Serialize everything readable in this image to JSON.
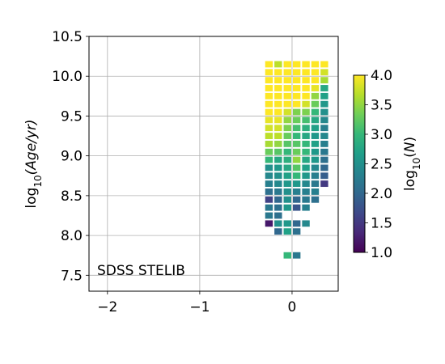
{
  "chart_data": {
    "type": "heatmap",
    "annotation": "SDSS STELIB",
    "xlim": [
      -2.2,
      0.5
    ],
    "ylim": [
      7.3,
      10.5
    ],
    "xticks": [
      {
        "value": -2,
        "label": "−2"
      },
      {
        "value": -1,
        "label": "−1"
      },
      {
        "value": 0,
        "label": "0"
      }
    ],
    "yticks": [
      {
        "value": 7.5,
        "label": "7.5"
      },
      {
        "value": 8.0,
        "label": "8.0"
      },
      {
        "value": 8.5,
        "label": "8.5"
      },
      {
        "value": 9.0,
        "label": "9.0"
      },
      {
        "value": 9.5,
        "label": "9.5"
      },
      {
        "value": 10.0,
        "label": "10.0"
      },
      {
        "value": 10.5,
        "label": "10.5"
      }
    ],
    "grid": true,
    "ylabel": "log10(Age/yr)",
    "colorbar": {
      "label": "log10(N)",
      "range": [
        1.0,
        4.0
      ],
      "colormap": "viridis",
      "ticks": [
        {
          "value": 1.0,
          "label": "1.0"
        },
        {
          "value": 1.5,
          "label": "1.5"
        },
        {
          "value": 2.0,
          "label": "2.0"
        },
        {
          "value": 2.5,
          "label": "2.5"
        },
        {
          "value": 3.0,
          "label": "3.0"
        },
        {
          "value": 3.5,
          "label": "3.5"
        },
        {
          "value": 4.0,
          "label": "4.0"
        }
      ]
    },
    "cell_size": {
      "dx": 0.1,
      "dy": 0.1
    },
    "x_centers": [
      -0.25,
      -0.15,
      -0.05,
      0.05,
      0.15,
      0.25,
      0.35
    ],
    "columns": [
      {
        "x": -0.25,
        "cells": [
          [
            10.15,
            4.0
          ],
          [
            10.05,
            4.0
          ],
          [
            9.95,
            4.0
          ],
          [
            9.85,
            4.0
          ],
          [
            9.75,
            4.0
          ],
          [
            9.65,
            4.0
          ],
          [
            9.55,
            4.0
          ],
          [
            9.45,
            3.9
          ],
          [
            9.35,
            3.8
          ],
          [
            9.25,
            3.7
          ],
          [
            9.15,
            3.6
          ],
          [
            9.05,
            3.3
          ],
          [
            8.95,
            3.0
          ],
          [
            8.85,
            2.5
          ],
          [
            8.75,
            2.4
          ],
          [
            8.65,
            2.3
          ],
          [
            8.55,
            2.1
          ],
          [
            8.45,
            1.6
          ],
          [
            8.35,
            2.2
          ],
          [
            8.25,
            2.2
          ],
          [
            8.15,
            1.2
          ]
        ]
      },
      {
        "x": -0.15,
        "cells": [
          [
            10.15,
            3.7
          ],
          [
            10.05,
            4.0
          ],
          [
            9.95,
            4.0
          ],
          [
            9.85,
            4.0
          ],
          [
            9.75,
            4.0
          ],
          [
            9.65,
            4.0
          ],
          [
            9.55,
            4.0
          ],
          [
            9.45,
            3.9
          ],
          [
            9.35,
            3.8
          ],
          [
            9.25,
            3.7
          ],
          [
            9.15,
            3.5
          ],
          [
            9.05,
            3.2
          ],
          [
            8.95,
            2.8
          ],
          [
            8.85,
            2.6
          ],
          [
            8.75,
            2.5
          ],
          [
            8.65,
            2.4
          ],
          [
            8.55,
            2.2
          ],
          [
            8.45,
            2.0
          ],
          [
            8.35,
            2.1
          ],
          [
            8.25,
            2.1
          ],
          [
            8.15,
            2.5
          ],
          [
            8.05,
            2.0
          ]
        ]
      },
      {
        "x": -0.05,
        "cells": [
          [
            10.15,
            4.0
          ],
          [
            10.05,
            4.0
          ],
          [
            9.95,
            4.0
          ],
          [
            9.85,
            4.0
          ],
          [
            9.75,
            4.0
          ],
          [
            9.65,
            4.0
          ],
          [
            9.55,
            3.8
          ],
          [
            9.45,
            3.5
          ],
          [
            9.35,
            3.4
          ],
          [
            9.25,
            3.3
          ],
          [
            9.15,
            3.2
          ],
          [
            9.05,
            3.0
          ],
          [
            8.95,
            2.9
          ],
          [
            8.85,
            2.8
          ],
          [
            8.75,
            2.7
          ],
          [
            8.65,
            2.6
          ],
          [
            8.55,
            2.5
          ],
          [
            8.45,
            2.5
          ],
          [
            8.35,
            2.6
          ],
          [
            8.15,
            2.6
          ],
          [
            8.05,
            2.7
          ],
          [
            7.75,
            3.0
          ]
        ]
      },
      {
        "x": 0.05,
        "cells": [
          [
            10.15,
            4.0
          ],
          [
            10.05,
            4.0
          ],
          [
            9.95,
            4.0
          ],
          [
            9.85,
            4.0
          ],
          [
            9.75,
            4.0
          ],
          [
            9.65,
            4.0
          ],
          [
            9.55,
            3.4
          ],
          [
            9.45,
            3.3
          ],
          [
            9.35,
            3.1
          ],
          [
            9.25,
            3.0
          ],
          [
            9.15,
            3.2
          ],
          [
            9.05,
            3.3
          ],
          [
            8.95,
            3.5
          ],
          [
            8.85,
            3.2
          ],
          [
            8.75,
            3.0
          ],
          [
            8.65,
            2.6
          ],
          [
            8.55,
            2.3
          ],
          [
            8.45,
            2.0
          ],
          [
            8.35,
            1.8
          ],
          [
            8.15,
            2.0
          ],
          [
            8.05,
            2.1
          ],
          [
            7.75,
            2.2
          ]
        ]
      },
      {
        "x": 0.15,
        "cells": [
          [
            10.15,
            4.0
          ],
          [
            10.05,
            4.0
          ],
          [
            9.95,
            4.0
          ],
          [
            9.85,
            4.0
          ],
          [
            9.75,
            4.0
          ],
          [
            9.65,
            3.8
          ],
          [
            9.55,
            3.4
          ],
          [
            9.45,
            3.1
          ],
          [
            9.35,
            2.9
          ],
          [
            9.25,
            2.8
          ],
          [
            9.15,
            3.0
          ],
          [
            9.05,
            3.0
          ],
          [
            8.95,
            2.8
          ],
          [
            8.85,
            2.7
          ],
          [
            8.75,
            2.6
          ],
          [
            8.65,
            2.4
          ],
          [
            8.55,
            2.3
          ],
          [
            8.45,
            2.2
          ],
          [
            8.35,
            2.3
          ],
          [
            8.15,
            2.4
          ]
        ]
      },
      {
        "x": 0.25,
        "cells": [
          [
            10.15,
            4.0
          ],
          [
            10.05,
            4.0
          ],
          [
            9.95,
            4.0
          ],
          [
            9.85,
            3.9
          ],
          [
            9.75,
            3.5
          ],
          [
            9.65,
            3.3
          ],
          [
            9.55,
            3.0
          ],
          [
            9.45,
            2.8
          ],
          [
            9.35,
            2.7
          ],
          [
            9.25,
            2.6
          ],
          [
            9.15,
            2.7
          ],
          [
            9.05,
            2.6
          ],
          [
            8.95,
            2.6
          ],
          [
            8.85,
            2.4
          ],
          [
            8.75,
            2.3
          ],
          [
            8.65,
            2.2
          ],
          [
            8.55,
            2.3
          ],
          [
            8.45,
            2.1
          ]
        ]
      },
      {
        "x": 0.35,
        "cells": [
          [
            10.15,
            4.0
          ],
          [
            10.05,
            3.8
          ],
          [
            9.95,
            3.6
          ],
          [
            9.85,
            2.8
          ],
          [
            9.75,
            2.7
          ],
          [
            9.65,
            2.6
          ],
          [
            9.55,
            2.5
          ],
          [
            9.45,
            2.4
          ],
          [
            9.35,
            2.3
          ],
          [
            9.25,
            2.4
          ],
          [
            9.15,
            2.3
          ],
          [
            9.05,
            2.2
          ],
          [
            8.95,
            2.1
          ],
          [
            8.85,
            2.0
          ],
          [
            8.75,
            1.9
          ],
          [
            8.65,
            1.5
          ]
        ]
      }
    ]
  }
}
